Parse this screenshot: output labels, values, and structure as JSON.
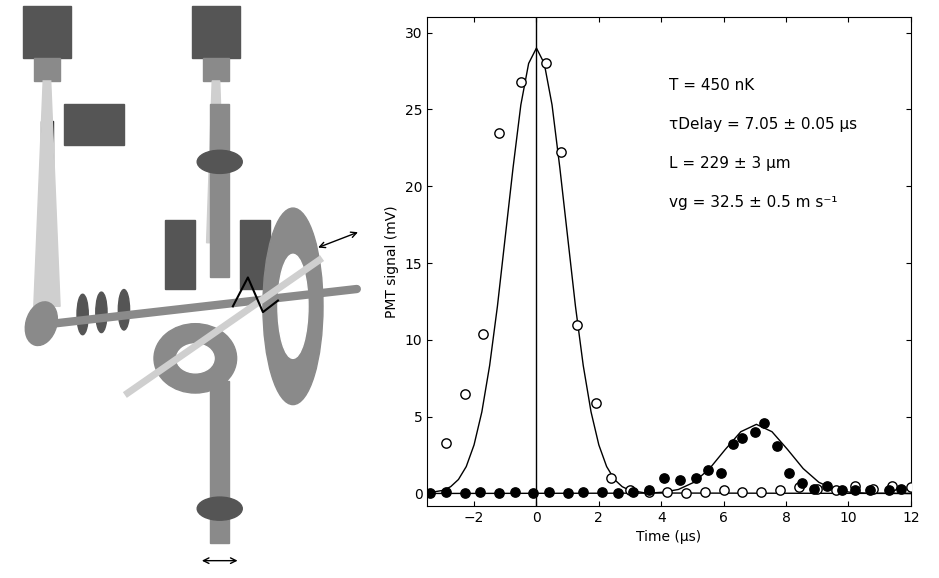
{
  "chart_data": {
    "type": "scatter",
    "xlabel": "Time (µs)",
    "ylabel": "PMT signal (mV)",
    "xlim": [
      -3.5,
      12
    ],
    "ylim": [
      -0.8,
      31
    ],
    "xticks": [
      {
        "value": -2,
        "label": "−2"
      },
      0,
      2,
      4,
      6,
      8,
      10,
      12
    ],
    "yticks": [
      0,
      5,
      10,
      15,
      20,
      25,
      30
    ],
    "annotations": [
      "T = 450 nK",
      "τDelay = 7.05 ± 0.05 µs",
      "L = 229 ± 3 µm",
      "vg = 32.5 ± 0.5 m s⁻¹"
    ],
    "series": [
      {
        "type": "scatter",
        "marker": "open circle",
        "color": "#000000",
        "x": [
          -2.9,
          -2.3,
          -1.7,
          -1.2,
          -0.5,
          0.3,
          0.8,
          1.3,
          1.9,
          2.4,
          3.0,
          3.6,
          4.2,
          4.8,
          5.4,
          6.0,
          6.6,
          7.2,
          7.8,
          8.4,
          9.0,
          9.6,
          10.2,
          10.8,
          11.4,
          12.0
        ],
        "values": [
          3.3,
          6.5,
          10.4,
          23.5,
          26.8,
          28.0,
          22.2,
          11.0,
          5.9,
          1.0,
          0.2,
          0.1,
          0.1,
          0.0,
          0.1,
          0.2,
          0.1,
          0.1,
          0.2,
          0.4,
          0.3,
          0.2,
          0.5,
          0.3,
          0.5,
          0.4
        ]
      },
      {
        "type": "scatter",
        "marker": "filled circle",
        "color": "#000000",
        "x": [
          -3.4,
          -2.9,
          -2.3,
          -1.8,
          -1.2,
          -0.7,
          -0.1,
          0.4,
          1.0,
          1.5,
          2.1,
          2.6,
          3.1,
          3.6,
          4.1,
          4.6,
          5.1,
          5.5,
          5.9,
          6.3,
          6.6,
          7.0,
          7.3,
          7.7,
          8.1,
          8.5,
          8.9,
          9.3,
          9.8,
          10.2,
          10.7,
          11.3,
          11.7
        ],
        "values": [
          0.0,
          0.1,
          0.0,
          0.1,
          0.0,
          0.1,
          0.0,
          0.1,
          0.0,
          0.1,
          0.1,
          0.0,
          0.1,
          0.2,
          1.0,
          0.9,
          1.0,
          1.5,
          1.3,
          3.2,
          3.6,
          4.0,
          4.6,
          3.1,
          1.3,
          0.7,
          0.3,
          0.5,
          0.2,
          0.2,
          0.2,
          0.2,
          0.3
        ]
      },
      {
        "type": "line",
        "line_style": "solid",
        "color": "#000000",
        "x": [
          -3.5,
          -3.0,
          -2.75,
          -2.5,
          -2.25,
          -2.0,
          -1.75,
          -1.5,
          -1.25,
          -1.0,
          -0.75,
          -0.5,
          -0.25,
          0.0,
          0.25,
          0.5,
          0.75,
          1.0,
          1.25,
          1.5,
          1.75,
          2.0,
          2.25,
          2.5,
          2.75,
          3.0,
          3.5,
          12.0
        ],
        "values": [
          0.03,
          0.2,
          0.44,
          0.91,
          1.75,
          3.16,
          5.31,
          8.33,
          12.2,
          16.7,
          21.2,
          25.3,
          28.0,
          29.0,
          28.0,
          25.3,
          21.2,
          16.7,
          12.2,
          8.33,
          5.31,
          3.16,
          1.75,
          0.91,
          0.44,
          0.2,
          0.03,
          0.0
        ]
      },
      {
        "type": "line",
        "line_style": "solid",
        "color": "#000000",
        "x": [
          -3.5,
          3.55,
          4.05,
          4.55,
          5.05,
          5.55,
          6.05,
          6.55,
          7.05,
          7.55,
          8.05,
          8.55,
          9.05,
          9.55,
          10.05,
          10.55,
          12.0
        ],
        "values": [
          0.0,
          0.02,
          0.08,
          0.26,
          0.73,
          1.62,
          2.86,
          4.02,
          4.5,
          4.02,
          2.86,
          1.62,
          0.73,
          0.26,
          0.08,
          0.02,
          0.0
        ]
      },
      {
        "type": "vline",
        "color": "#000000",
        "x": [
          0
        ]
      }
    ]
  }
}
